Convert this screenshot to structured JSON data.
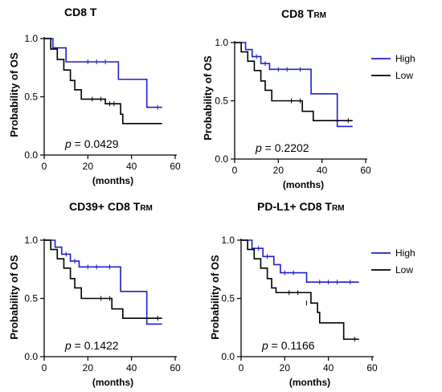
{
  "chart_data": [
    {
      "type": "line",
      "title_main": "CD8 T",
      "title_sub": "",
      "xlabel": "(months)",
      "ylabel": "Probability of OS",
      "xlim": [
        0,
        60
      ],
      "ylim": [
        0,
        1
      ],
      "xticks": [
        "0",
        "20",
        "40",
        "60"
      ],
      "yticks": [
        "0.0",
        "0.5",
        "1.0"
      ],
      "p_label": "p",
      "p_value": "= 0.0429",
      "legend": "none",
      "series": [
        {
          "name": "High",
          "color": "#1f1fcc",
          "steps": [
            [
              0,
              1.0
            ],
            [
              4,
              0.92
            ],
            [
              10,
              0.8
            ],
            [
              25,
              0.8
            ],
            [
              34,
              0.65
            ],
            [
              47,
              0.41
            ],
            [
              54,
              0.41
            ]
          ],
          "censors": [
            [
              20,
              0.8
            ],
            [
              24,
              0.8
            ],
            [
              28,
              0.8
            ],
            [
              52,
              0.41
            ]
          ]
        },
        {
          "name": "Low",
          "color": "#000000",
          "steps": [
            [
              0,
              1.0
            ],
            [
              3,
              0.91
            ],
            [
              6,
              0.82
            ],
            [
              9,
              0.73
            ],
            [
              12,
              0.64
            ],
            [
              14,
              0.56
            ],
            [
              17,
              0.48
            ],
            [
              28,
              0.44
            ],
            [
              35,
              0.35
            ],
            [
              36,
              0.27
            ],
            [
              54,
              0.27
            ]
          ],
          "censors": [
            [
              22,
              0.48
            ],
            [
              26,
              0.48
            ],
            [
              30,
              0.44
            ],
            [
              32,
              0.44
            ]
          ]
        }
      ]
    },
    {
      "type": "line",
      "title_main": "CD8 T",
      "title_sub": "RM",
      "xlabel": "(months)",
      "ylabel": "Probability of OS",
      "xlim": [
        0,
        60
      ],
      "ylim": [
        0,
        1
      ],
      "xticks": [
        "0",
        "20",
        "40",
        "60"
      ],
      "yticks": [
        "0.0",
        "0.5",
        "1.0"
      ],
      "p_label": "p",
      "p_value": "= 0.2202",
      "legend": "right",
      "series": [
        {
          "name": "High",
          "color": "#1f1fcc",
          "steps": [
            [
              0,
              1.0
            ],
            [
              5,
              0.94
            ],
            [
              8,
              0.88
            ],
            [
              12,
              0.82
            ],
            [
              16,
              0.77
            ],
            [
              30,
              0.77
            ],
            [
              35,
              0.56
            ],
            [
              47,
              0.28
            ],
            [
              54,
              0.28
            ]
          ],
          "censors": [
            [
              10,
              0.88
            ],
            [
              14,
              0.82
            ],
            [
              20,
              0.77
            ],
            [
              24,
              0.77
            ],
            [
              30,
              0.77
            ]
          ]
        },
        {
          "name": "Low",
          "color": "#000000",
          "steps": [
            [
              0,
              1.0
            ],
            [
              3,
              0.92
            ],
            [
              6,
              0.84
            ],
            [
              9,
              0.76
            ],
            [
              12,
              0.67
            ],
            [
              14,
              0.59
            ],
            [
              17,
              0.5
            ],
            [
              31,
              0.41
            ],
            [
              36,
              0.33
            ],
            [
              54,
              0.33
            ]
          ],
          "censors": [
            [
              26,
              0.5
            ],
            [
              30,
              0.5
            ],
            [
              52,
              0.33
            ]
          ]
        }
      ]
    },
    {
      "type": "line",
      "title_main": "CD39+ CD8 T",
      "title_sub": "RM",
      "xlabel": "(months)",
      "ylabel": "Probability of OS",
      "xlim": [
        0,
        60
      ],
      "ylim": [
        0,
        1
      ],
      "xticks": [
        "0",
        "20",
        "40",
        "60"
      ],
      "yticks": [
        "0.0",
        "0.5",
        "1.0"
      ],
      "p_label": "p",
      "p_value": "= 0.1422",
      "legend": "none",
      "series": [
        {
          "name": "High",
          "color": "#1f1fcc",
          "steps": [
            [
              0,
              1.0
            ],
            [
              5,
              0.94
            ],
            [
              8,
              0.88
            ],
            [
              12,
              0.82
            ],
            [
              16,
              0.77
            ],
            [
              30,
              0.77
            ],
            [
              35,
              0.56
            ],
            [
              47,
              0.28
            ],
            [
              54,
              0.28
            ]
          ],
          "censors": [
            [
              10,
              0.88
            ],
            [
              14,
              0.82
            ],
            [
              20,
              0.77
            ],
            [
              24,
              0.77
            ],
            [
              30,
              0.77
            ]
          ]
        },
        {
          "name": "Low",
          "color": "#000000",
          "steps": [
            [
              0,
              1.0
            ],
            [
              3,
              0.92
            ],
            [
              6,
              0.84
            ],
            [
              9,
              0.76
            ],
            [
              12,
              0.67
            ],
            [
              14,
              0.59
            ],
            [
              17,
              0.5
            ],
            [
              31,
              0.41
            ],
            [
              36,
              0.33
            ],
            [
              54,
              0.33
            ]
          ],
          "censors": [
            [
              26,
              0.5
            ],
            [
              30,
              0.5
            ],
            [
              52,
              0.33
            ]
          ]
        }
      ]
    },
    {
      "type": "line",
      "title_main": "PD-L1+ CD8 T",
      "title_sub": "RM",
      "xlabel": "(months)",
      "ylabel": "Probability of OS",
      "xlim": [
        0,
        60
      ],
      "ylim": [
        0,
        1
      ],
      "xticks": [
        "0",
        "20",
        "40",
        "60"
      ],
      "yticks": [
        "0.0",
        "0.5",
        "1.0"
      ],
      "p_label": "p",
      "p_value": "= 0.1166",
      "legend": "right",
      "series": [
        {
          "name": "High",
          "color": "#1f1fcc",
          "steps": [
            [
              0,
              1.0
            ],
            [
              5,
              0.93
            ],
            [
              10,
              0.86
            ],
            [
              15,
              0.79
            ],
            [
              18,
              0.72
            ],
            [
              28,
              0.72
            ],
            [
              30,
              0.64
            ],
            [
              54,
              0.64
            ]
          ],
          "censors": [
            [
              8,
              0.93
            ],
            [
              12,
              0.86
            ],
            [
              20,
              0.72
            ],
            [
              24,
              0.72
            ],
            [
              36,
              0.64
            ],
            [
              40,
              0.64
            ],
            [
              44,
              0.64
            ],
            [
              50,
              0.64
            ]
          ]
        },
        {
          "name": "Low",
          "color": "#000000",
          "steps": [
            [
              0,
              1.0
            ],
            [
              3,
              0.92
            ],
            [
              6,
              0.84
            ],
            [
              9,
              0.76
            ],
            [
              12,
              0.67
            ],
            [
              14,
              0.59
            ],
            [
              16,
              0.55
            ],
            [
              29,
              0.55
            ],
            [
              32,
              0.46
            ],
            [
              35,
              0.38
            ],
            [
              36,
              0.29
            ],
            [
              47,
              0.15
            ],
            [
              54,
              0.15
            ]
          ],
          "censors": [
            [
              22,
              0.55
            ],
            [
              26,
              0.55
            ],
            [
              30,
              0.46
            ],
            [
              52,
              0.15
            ]
          ]
        }
      ]
    }
  ]
}
